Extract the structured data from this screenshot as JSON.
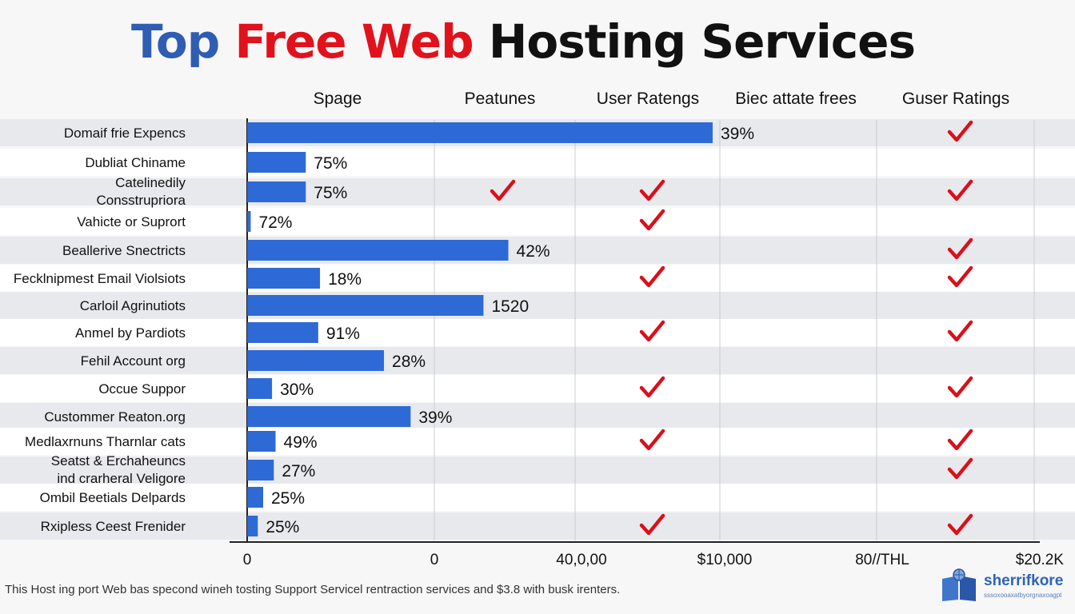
{
  "title": {
    "part1": "Top",
    "part2": "Free Web",
    "part3": "Hosting Services"
  },
  "column_headers": [
    "Spage",
    "Peatunes",
    "User Ratengs",
    "Biec attate frees",
    "Guser Ratings"
  ],
  "chart_data": {
    "type": "bar",
    "orientation": "horizontal",
    "categories": [
      "Domaif frie Expencs",
      "Dubliat Chiname",
      "Catelinedily Consstrupriora",
      "Vahicte or Suprort",
      "Beallerive Snectricts",
      "Fecklnipmest Email Violsiots",
      "Carloil Agrinutiots",
      "Anmel by Pardiots",
      "Fehil Account org",
      "Occue Suppor",
      "Custommer Reaton.org",
      "Medlaxrnuns Tharnlar cats",
      "Seatst & Erchaheuncs ind crarheral Veligore",
      "Ombil Beetials Delpards",
      "Rxipless Ceest Frenider"
    ],
    "values": [
      262000,
      33000,
      33000,
      2000,
      147000,
      41000,
      133000,
      40000,
      77000,
      14000,
      92000,
      16000,
      15000,
      9000,
      6000
    ],
    "data_labels": [
      "39%",
      "75%",
      "75%",
      "72%",
      "42%",
      "18%",
      "1520",
      "91%",
      "28%",
      "30%",
      "39%",
      "49%",
      "27%",
      "25%",
      "25%"
    ],
    "check_columns": {
      "Peatunes": [
        false,
        false,
        true,
        false,
        false,
        false,
        false,
        false,
        false,
        false,
        false,
        false,
        false,
        false,
        false
      ],
      "User Ratengs": [
        false,
        false,
        true,
        true,
        false,
        true,
        false,
        true,
        false,
        true,
        false,
        true,
        false,
        false,
        true
      ],
      "Guser Ratings": [
        true,
        false,
        true,
        false,
        true,
        true,
        false,
        true,
        false,
        true,
        false,
        true,
        true,
        false,
        true
      ]
    },
    "x_ticks": [
      "0",
      "0",
      "40,0,00",
      "$10,000",
      "80//THL",
      "$20.2K"
    ],
    "xlim": [
      0,
      450000
    ],
    "grid": true,
    "bar_color": "#2e6ad6",
    "check_color": "#d9101a"
  },
  "footnote": "This Host ing port Web bas specond wineh tosting Support Servicel rentraction services and $3.8 with busk irenters.",
  "logo": {
    "name": "sherrifkore",
    "tagline": "sssoxooaxatbyorgnaxoagpt",
    "icon": "book-globe-icon"
  },
  "colors": {
    "title_blue": "#2f5db3",
    "title_red": "#e1121c",
    "title_black": "#111111",
    "accent": "#2e6ad6",
    "check": "#d9101a"
  }
}
